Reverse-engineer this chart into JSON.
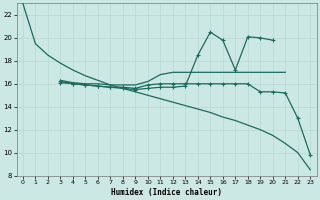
{
  "xlabel": "Humidex (Indice chaleur)",
  "bg_color": "#cce8e4",
  "line_color": "#1a6b5e",
  "grid_color": "#b8d8d4",
  "x_ticks": [
    0,
    1,
    2,
    3,
    4,
    5,
    6,
    7,
    8,
    9,
    10,
    11,
    12,
    13,
    14,
    15,
    16,
    17,
    18,
    19,
    20,
    21,
    22,
    23
  ],
  "xlim": [
    -0.5,
    23.5
  ],
  "ylim": [
    8,
    23
  ],
  "y_ticks": [
    8,
    10,
    12,
    14,
    16,
    18,
    20,
    22
  ],
  "line1_x": [
    0,
    1,
    2,
    3,
    4,
    5,
    6,
    7,
    8,
    9,
    10,
    11,
    12,
    13,
    14,
    15,
    16,
    17,
    18,
    19,
    20,
    21,
    22,
    23
  ],
  "line1_y": [
    23,
    19.5,
    18.5,
    17.8,
    17.2,
    16.7,
    16.3,
    15.9,
    15.6,
    15.3,
    15.0,
    14.7,
    14.4,
    14.1,
    13.8,
    13.5,
    13.1,
    12.8,
    12.4,
    12.0,
    11.5,
    10.8,
    10.0,
    8.5
  ],
  "line2_x": [
    3,
    4,
    5,
    6,
    7,
    8,
    9,
    10,
    11,
    12,
    13,
    14,
    15,
    16,
    17,
    18,
    19,
    20,
    21
  ],
  "line2_y": [
    16.3,
    16.1,
    16.0,
    16.0,
    15.9,
    15.9,
    15.9,
    16.2,
    16.8,
    17.0,
    17.0,
    17.0,
    17.0,
    17.0,
    17.0,
    17.0,
    17.0,
    17.0,
    17.0
  ],
  "line3_x": [
    3,
    4,
    5,
    6,
    7,
    8,
    9,
    10,
    11,
    12,
    13,
    14,
    15,
    16,
    17,
    18,
    19,
    20,
    21,
    22,
    23
  ],
  "line3_y": [
    16.2,
    16.0,
    15.9,
    15.8,
    15.7,
    15.7,
    15.6,
    15.9,
    16.0,
    16.0,
    16.0,
    16.0,
    16.0,
    16.0,
    16.0,
    16.0,
    15.3,
    15.3,
    15.2,
    13.0,
    9.8
  ],
  "line4_x": [
    3,
    4,
    5,
    6,
    7,
    8,
    9,
    10,
    11,
    12,
    13,
    14,
    15,
    16,
    17,
    18,
    19,
    20
  ],
  "line4_y": [
    16.1,
    16.0,
    15.9,
    15.8,
    15.7,
    15.6,
    15.5,
    15.6,
    15.7,
    15.7,
    15.8,
    18.5,
    20.5,
    19.8,
    17.2,
    20.1,
    20.0,
    19.8
  ]
}
